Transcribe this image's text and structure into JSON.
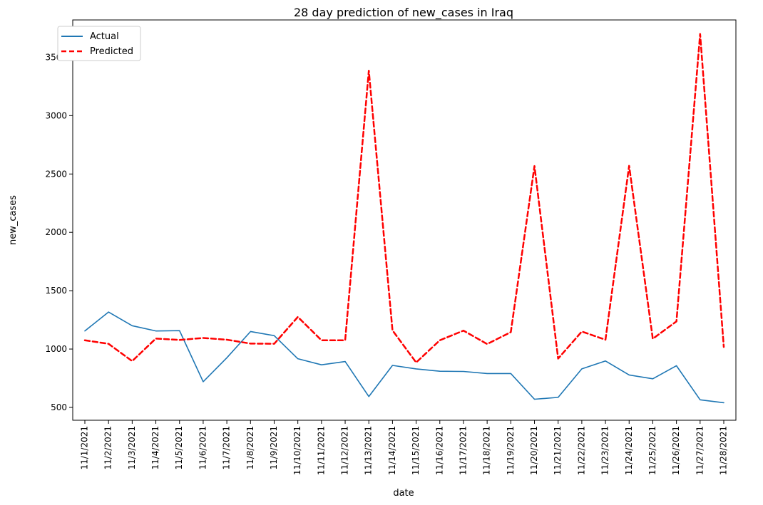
{
  "chart_data": {
    "type": "line",
    "title": "28 day prediction of new_cases in Iraq",
    "xlabel": "date",
    "ylabel": "new_cases",
    "ylim": [
      390,
      3820
    ],
    "yticks": [
      500,
      1000,
      1500,
      2000,
      2500,
      3000,
      3500
    ],
    "grid": false,
    "legend_position": "top-left",
    "x": [
      "11/1/2021",
      "11/2/2021",
      "11/3/2021",
      "11/4/2021",
      "11/5/2021",
      "11/6/2021",
      "11/7/2021",
      "11/8/2021",
      "11/9/2021",
      "11/10/2021",
      "11/11/2021",
      "11/12/2021",
      "11/13/2021",
      "11/14/2021",
      "11/15/2021",
      "11/16/2021",
      "11/17/2021",
      "11/18/2021",
      "11/19/2021",
      "11/20/2021",
      "11/21/2021",
      "11/22/2021",
      "11/23/2021",
      "11/24/2021",
      "11/25/2021",
      "11/26/2021",
      "11/27/2021",
      "11/28/2021"
    ],
    "series": [
      {
        "name": "Actual",
        "color": "#1f77b4",
        "style": "solid",
        "values": [
          1155,
          1317,
          1200,
          1155,
          1158,
          720,
          925,
          1150,
          1115,
          917,
          865,
          893,
          593,
          860,
          830,
          810,
          808,
          790,
          790,
          570,
          586,
          830,
          898,
          778,
          745,
          857,
          565,
          540
        ]
      },
      {
        "name": "Predicted",
        "color": "#ff0000",
        "style": "dashed",
        "values": [
          1075,
          1045,
          897,
          1090,
          1078,
          1095,
          1080,
          1047,
          1045,
          1275,
          1075,
          1075,
          3385,
          1160,
          885,
          1075,
          1158,
          1043,
          1145,
          2568,
          918,
          1150,
          1080,
          2570,
          1088,
          1237,
          3700,
          1018
        ]
      }
    ]
  }
}
